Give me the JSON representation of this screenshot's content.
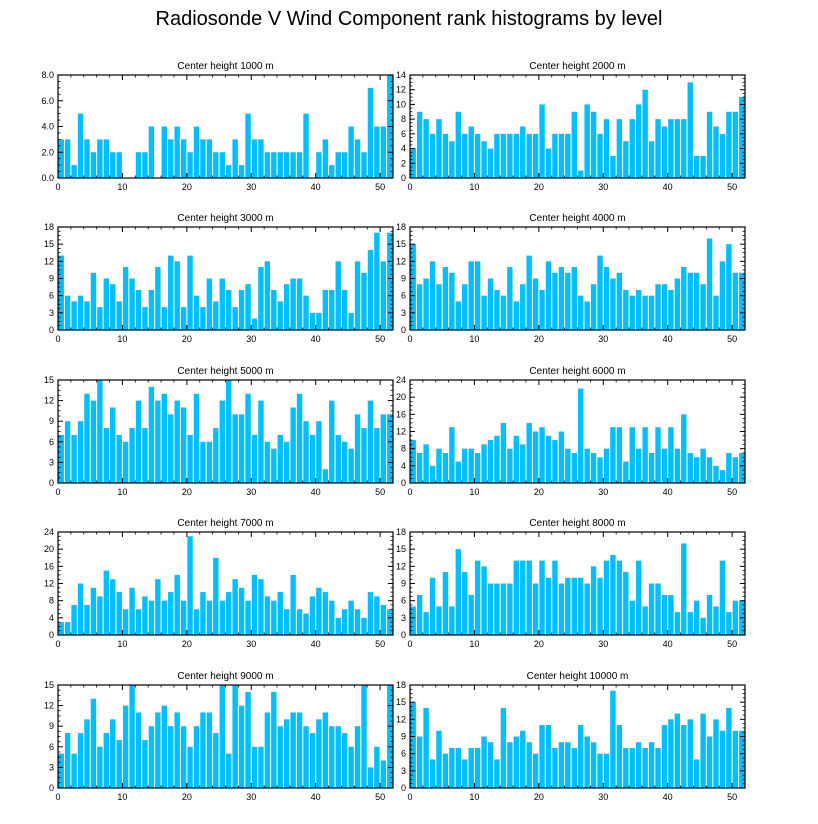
{
  "title": "Radiosonde V Wind Component rank histograms by level",
  "bar_color": "#00bfff",
  "chart_data": [
    {
      "type": "bar",
      "title": "Center height 1000 m",
      "xlim": [
        0,
        52
      ],
      "ylim": [
        0,
        8
      ],
      "xticks": [
        0,
        10,
        20,
        30,
        40,
        50
      ],
      "yticks": [
        "0.0",
        "2.0",
        "4.0",
        "6.0",
        "8.0"
      ],
      "values": [
        3,
        3,
        1,
        5,
        3,
        2,
        3,
        3,
        2,
        2,
        0,
        0,
        2,
        2,
        4,
        0,
        4,
        3,
        4,
        3,
        2,
        4,
        3,
        3,
        2,
        2,
        1,
        3,
        1,
        5,
        3,
        3,
        2,
        2,
        2,
        2,
        2,
        2,
        5,
        0,
        2,
        3,
        1,
        2,
        2,
        4,
        3,
        2,
        7,
        4,
        4,
        8
      ]
    },
    {
      "type": "bar",
      "title": "Center height 2000 m",
      "xlim": [
        0,
        52
      ],
      "ylim": [
        0,
        14
      ],
      "xticks": [
        0,
        10,
        20,
        30,
        40,
        50
      ],
      "yticks": [
        "0",
        "2",
        "4",
        "6",
        "8",
        "10",
        "12",
        "14"
      ],
      "values": [
        4,
        9,
        8,
        6,
        8,
        6,
        5,
        9,
        6,
        7,
        6,
        5,
        4,
        6,
        6,
        6,
        6,
        7,
        6,
        6,
        10,
        4,
        6,
        6,
        6,
        9,
        1,
        10,
        9,
        6,
        8,
        3,
        8,
        5,
        8,
        10,
        12,
        5,
        8,
        7,
        8,
        8,
        8,
        13,
        3,
        3,
        9,
        7,
        6,
        9,
        9,
        11
      ]
    },
    {
      "type": "bar",
      "title": "Center height 3000 m",
      "xlim": [
        0,
        52
      ],
      "ylim": [
        0,
        18
      ],
      "xticks": [
        0,
        10,
        20,
        30,
        40,
        50
      ],
      "yticks": [
        "0",
        "3",
        "6",
        "9",
        "12",
        "15",
        "18"
      ],
      "values": [
        13,
        6,
        5,
        6,
        5,
        10,
        4,
        9,
        8,
        5,
        11,
        9,
        7,
        4,
        7,
        11,
        4,
        13,
        12,
        4,
        13,
        6,
        4,
        9,
        5,
        9,
        7,
        4,
        7,
        8,
        2,
        11,
        12,
        7,
        5,
        8,
        9,
        9,
        6,
        3,
        3,
        7,
        7,
        12,
        7,
        3,
        12,
        10,
        14,
        17,
        12,
        17
      ]
    },
    {
      "type": "bar",
      "title": "Center height 4000 m",
      "xlim": [
        0,
        52
      ],
      "ylim": [
        0,
        18
      ],
      "xticks": [
        0,
        10,
        20,
        30,
        40,
        50
      ],
      "yticks": [
        "0",
        "3",
        "6",
        "9",
        "12",
        "15",
        "18"
      ],
      "values": [
        15,
        8,
        9,
        12,
        8,
        11,
        10,
        5,
        8,
        12,
        12,
        6,
        9,
        7,
        6,
        11,
        5,
        8,
        13,
        9,
        7,
        12,
        10,
        11,
        10,
        11,
        6,
        5,
        8,
        13,
        11,
        9,
        10,
        7,
        6,
        7,
        6,
        6,
        8,
        8,
        7,
        9,
        11,
        10,
        10,
        8,
        16,
        6,
        12,
        15,
        10,
        10
      ]
    },
    {
      "type": "bar",
      "title": "Center height 5000 m",
      "xlim": [
        0,
        52
      ],
      "ylim": [
        0,
        15
      ],
      "xticks": [
        0,
        10,
        20,
        30,
        40,
        50
      ],
      "yticks": [
        "0",
        "3",
        "6",
        "9",
        "12",
        "15"
      ],
      "values": [
        7,
        9,
        7,
        9,
        13,
        12,
        15,
        8,
        11,
        7,
        6,
        8,
        12,
        8,
        14,
        12,
        13,
        10,
        12,
        11,
        7,
        13,
        6,
        6,
        8,
        12,
        15,
        10,
        10,
        13,
        7,
        12,
        6,
        5,
        7,
        6,
        11,
        13,
        9,
        7,
        9,
        2,
        12,
        7,
        6,
        5,
        10,
        8,
        12,
        8,
        10,
        10
      ]
    },
    {
      "type": "bar",
      "title": "Center height 6000 m",
      "xlim": [
        0,
        52
      ],
      "ylim": [
        0,
        24
      ],
      "xticks": [
        0,
        10,
        20,
        30,
        40,
        50
      ],
      "yticks": [
        "0",
        "4",
        "8",
        "12",
        "16",
        "20",
        "24"
      ],
      "values": [
        10,
        7,
        9,
        4,
        8,
        7,
        13,
        5,
        8,
        8,
        7,
        9,
        10,
        11,
        14,
        8,
        11,
        9,
        14,
        12,
        13,
        11,
        10,
        12,
        8,
        7,
        22,
        8,
        7,
        6,
        8,
        13,
        13,
        5,
        13,
        8,
        13,
        7,
        13,
        8,
        13,
        8,
        16,
        7,
        6,
        8,
        6,
        4,
        3,
        7,
        6,
        7
      ]
    },
    {
      "type": "bar",
      "title": "Center height 7000 m",
      "xlim": [
        0,
        52
      ],
      "ylim": [
        0,
        24
      ],
      "xticks": [
        0,
        10,
        20,
        30,
        40,
        50
      ],
      "yticks": [
        "0",
        "4",
        "8",
        "12",
        "16",
        "20",
        "24"
      ],
      "values": [
        3,
        3,
        7,
        12,
        7,
        11,
        9,
        15,
        13,
        10,
        6,
        11,
        6,
        9,
        8,
        13,
        8,
        10,
        14,
        8,
        23,
        6,
        10,
        8,
        18,
        8,
        10,
        13,
        11,
        8,
        14,
        13,
        9,
        8,
        10,
        6,
        14,
        6,
        5,
        9,
        11,
        10,
        8,
        4,
        6,
        8,
        6,
        4,
        10,
        9,
        7,
        6
      ]
    },
    {
      "type": "bar",
      "title": "Center height 8000 m",
      "xlim": [
        0,
        52
      ],
      "ylim": [
        0,
        18
      ],
      "xticks": [
        0,
        10,
        20,
        30,
        40,
        50
      ],
      "yticks": [
        "0",
        "3",
        "6",
        "9",
        "12",
        "15",
        "18"
      ],
      "values": [
        5,
        7,
        4,
        10,
        5,
        11,
        5,
        15,
        11,
        7,
        13,
        12,
        9,
        9,
        9,
        9,
        13,
        13,
        13,
        9,
        13,
        10,
        13,
        9,
        10,
        10,
        10,
        9,
        12,
        10,
        13,
        14,
        13,
        11,
        6,
        13,
        5,
        9,
        9,
        7,
        7,
        4,
        16,
        4,
        6,
        3,
        7,
        5,
        13,
        4,
        6,
        6
      ]
    },
    {
      "type": "bar",
      "title": "Center height 9000 m",
      "xlim": [
        0,
        52
      ],
      "ylim": [
        0,
        15
      ],
      "xticks": [
        0,
        10,
        20,
        30,
        40,
        50
      ],
      "yticks": [
        "0",
        "3",
        "6",
        "9",
        "12",
        "15"
      ],
      "values": [
        5,
        8,
        5,
        8,
        10,
        13,
        6,
        8,
        10,
        7,
        12,
        15,
        11,
        7,
        9,
        11,
        12,
        9,
        11,
        9,
        6,
        9,
        11,
        11,
        8,
        15,
        5,
        15,
        12,
        14,
        6,
        6,
        11,
        14,
        9,
        10,
        11,
        11,
        9,
        8,
        10,
        11,
        9,
        9,
        8,
        6,
        9,
        15,
        3,
        6,
        4,
        15
      ]
    },
    {
      "type": "bar",
      "title": "Center height 10000 m",
      "xlim": [
        0,
        52
      ],
      "ylim": [
        0,
        18
      ],
      "xticks": [
        0,
        10,
        20,
        30,
        40,
        50
      ],
      "yticks": [
        "0",
        "3",
        "6",
        "9",
        "12",
        "15",
        "18"
      ],
      "values": [
        15,
        9,
        14,
        5,
        10,
        6,
        7,
        7,
        5,
        7,
        7,
        9,
        8,
        5,
        14,
        8,
        9,
        10,
        8,
        6,
        11,
        11,
        7,
        8,
        8,
        7,
        11,
        9,
        8,
        6,
        6,
        17,
        11,
        7,
        7,
        8,
        7,
        8,
        7,
        11,
        12,
        13,
        11,
        12,
        5,
        13,
        9,
        12,
        10,
        14,
        10,
        10
      ]
    }
  ]
}
